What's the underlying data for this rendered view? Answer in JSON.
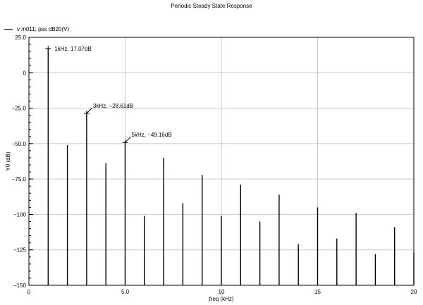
{
  "chart_data": {
    "type": "bar",
    "title": "Periodic Steady State Response",
    "legend": "v /n011; pss dB20(V)",
    "xlabel": "freq (kHz)",
    "ylabel": "Y0 (dB)",
    "xlim": [
      0,
      20
    ],
    "ylim": [
      -150,
      25
    ],
    "xticks": [
      0,
      5.0,
      10,
      15,
      20
    ],
    "xtick_labels": [
      "0",
      "5.0",
      "10",
      "15",
      "20"
    ],
    "yticks": [
      25,
      0,
      -25,
      -50,
      -75,
      -100,
      -125,
      -150
    ],
    "ytick_labels": [
      "25.0",
      "0",
      "−25.0",
      "−50.0",
      "−75.0",
      "−100",
      "−125",
      "−150"
    ],
    "grid": true,
    "x": [
      1,
      2,
      3,
      4,
      5,
      6,
      7,
      8,
      9,
      10,
      11,
      12,
      13,
      14,
      15,
      16,
      17,
      18,
      19,
      20
    ],
    "values": [
      17.07,
      -51,
      -28.61,
      -64,
      -49.16,
      -101,
      -60,
      -92,
      -72,
      -101,
      -79,
      -105,
      -86,
      -121,
      -95,
      -117,
      -99,
      -128,
      -109,
      -127
    ],
    "markers": [
      {
        "x": 1,
        "y": 17.07,
        "label": "1kHz, 17.07dB"
      },
      {
        "x": 3,
        "y": -28.61,
        "label": "3kHz, −28.61dB"
      },
      {
        "x": 5,
        "y": -49.16,
        "label": "5kHz, −49.16dB"
      }
    ]
  }
}
